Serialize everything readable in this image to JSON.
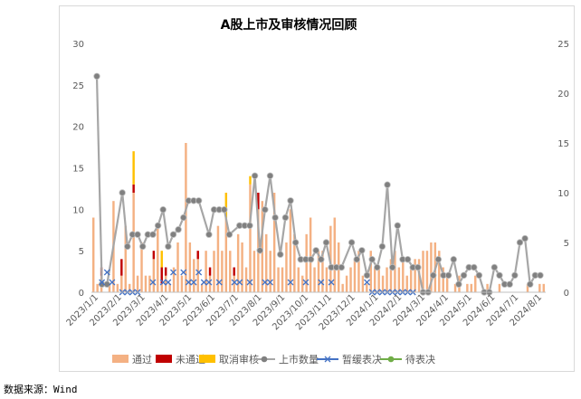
{
  "source_text": "数据来源：Wind",
  "chart_data": {
    "type": "bar",
    "title": "A股上市及审核情况回顾",
    "colors": {
      "pass": "#F4B183",
      "fail": "#C00000",
      "cancel": "#FFC000",
      "listing": "#A6A6A6",
      "listing_marker": "#808080",
      "suspend": "#4472C4",
      "pending": "#70AD47"
    },
    "ylim_left": [
      0,
      30
    ],
    "ylim_right": [
      0,
      25
    ],
    "yticks_left": [
      "0",
      "5",
      "10",
      "15",
      "20",
      "25",
      "30"
    ],
    "yticks_right": [
      "0",
      "5",
      "10",
      "15",
      "20",
      "25"
    ],
    "xticks": [
      "2023/1/1",
      "2023/2/1",
      "2023/3/1",
      "2023/4/1",
      "2023/5/1",
      "2023/6/1",
      "2023/7/1",
      "2023/8/1",
      "2023/9/1",
      "2023/10/1",
      "2023/11/1",
      "2023/12/1",
      "2024/1/1",
      "2024/2/1",
      "2024/3/1",
      "2024/4/1",
      "2024/5/1",
      "2024/6/1",
      "2024/7/1",
      "2024/8/1"
    ],
    "legend": [
      "通过",
      "未通过",
      "取消审核",
      "上市数量",
      "暂缓表决",
      "待表决"
    ],
    "legend_position": "bottom",
    "n_points": 113,
    "pass": [
      9,
      1,
      2,
      0,
      1,
      11,
      1,
      2,
      8,
      1,
      12,
      2,
      6,
      2,
      2,
      4,
      8,
      1,
      2,
      1,
      3,
      6,
      2,
      18,
      6,
      4,
      4,
      1,
      5,
      2,
      5,
      8,
      5,
      9,
      5,
      2,
      7,
      6,
      3,
      13,
      5,
      10,
      11,
      7,
      5,
      12,
      3,
      3,
      6,
      10,
      7,
      3,
      2,
      7,
      9,
      3,
      5,
      5,
      3,
      8,
      9,
      6,
      1,
      2,
      3,
      4,
      5,
      2,
      1,
      5,
      3,
      3,
      2,
      3,
      4,
      5,
      3,
      4,
      2,
      3,
      4,
      4,
      5,
      5,
      6,
      6,
      5,
      3,
      2,
      0,
      1,
      2,
      0,
      1,
      1,
      2,
      0,
      0,
      1,
      0,
      0,
      1,
      0,
      0,
      0,
      0,
      0,
      0,
      1,
      0,
      0,
      1,
      1
    ],
    "fail": [
      0,
      0,
      1,
      0,
      0,
      0,
      0,
      2,
      0,
      0,
      1,
      0,
      0,
      0,
      0,
      1,
      0,
      2,
      1,
      0,
      0,
      0,
      0,
      0,
      0,
      0,
      1,
      0,
      0,
      1,
      0,
      0,
      0,
      0,
      0,
      1,
      0,
      0,
      0,
      0,
      0,
      2,
      0,
      0,
      0,
      0,
      0,
      0,
      0,
      0,
      0,
      0,
      0,
      0,
      0,
      0,
      0,
      0,
      0,
      0,
      0,
      0,
      0,
      0,
      0,
      0,
      0,
      0,
      0,
      0,
      0,
      0,
      0,
      0,
      0,
      0,
      0,
      0,
      0,
      0,
      0,
      0,
      0,
      0,
      0,
      0,
      0,
      0,
      0,
      0,
      0,
      0,
      0,
      0,
      0,
      0,
      0,
      0,
      0,
      0,
      0,
      0,
      0,
      0,
      0,
      0,
      0,
      0,
      0,
      0,
      0,
      0,
      0
    ],
    "cancel": [
      0,
      0,
      0,
      0,
      0,
      0,
      0,
      0,
      0,
      0,
      4,
      0,
      0,
      0,
      0,
      0,
      0,
      2,
      0,
      0,
      0,
      0,
      0,
      0,
      0,
      0,
      0,
      0,
      0,
      0,
      0,
      0,
      0,
      3,
      0,
      0,
      0,
      0,
      0,
      1,
      0,
      0,
      0,
      0,
      0,
      0,
      0,
      0,
      0,
      0,
      0,
      0,
      0,
      0,
      0,
      0,
      0,
      0,
      0,
      0,
      0,
      0,
      0,
      0,
      0,
      0,
      0,
      0,
      0,
      0,
      0,
      0,
      0,
      0,
      0,
      0,
      0,
      0,
      0,
      0,
      0,
      0,
      0,
      0,
      0,
      0,
      0,
      0,
      0,
      0,
      0,
      0,
      0,
      0,
      0,
      0,
      0,
      0,
      0,
      0,
      0,
      0,
      0,
      0,
      0,
      0,
      0,
      0,
      0,
      0,
      0,
      0,
      0
    ],
    "listing": [
      21.7,
      0.8,
      0.8,
      null,
      10.0,
      4.6,
      5.8,
      5.8,
      4.6,
      5.8,
      5.8,
      6.7,
      8.3,
      4.6,
      5.8,
      6.3,
      7.5,
      9.2,
      9.2,
      9.2,
      null,
      5.8,
      8.3,
      8.3,
      8.3,
      5.8,
      null,
      6.7,
      6.7,
      6.7,
      11.7,
      4.2,
      8.3,
      11.7,
      7.5,
      3.8,
      7.5,
      9.2,
      5.0,
      3.3,
      3.3,
      3.3,
      4.2,
      3.3,
      5.0,
      2.5,
      2.5,
      2.5,
      null,
      5.0,
      3.3,
      4.2,
      1.7,
      3.3,
      2.5,
      4.6,
      10.8,
      2.5,
      6.7,
      3.3,
      3.3,
      2.5,
      2.5,
      0,
      0,
      1.7,
      3.3,
      1.7,
      1.7,
      3.3,
      0.8,
      1.7,
      2.5,
      2.5,
      1.7,
      0,
      0,
      2.5,
      1.7,
      0.8,
      0.8,
      1.7,
      5.0,
      5.4,
      0.8,
      1.7,
      1.7
    ],
    "listing_positions": [
      0,
      1,
      2,
      3,
      5,
      6,
      7,
      8,
      9,
      10,
      11,
      12,
      13,
      14,
      15,
      16,
      17,
      18,
      19,
      20,
      21,
      22,
      23,
      24,
      25,
      26,
      27,
      28,
      29,
      30,
      31,
      32,
      33,
      34,
      35,
      36,
      37,
      38,
      39,
      40,
      41,
      42,
      43,
      44,
      45,
      46,
      47,
      48,
      49,
      50,
      51,
      52,
      53,
      54,
      55,
      56,
      57,
      58,
      59,
      60,
      61,
      62,
      63,
      64,
      65,
      66,
      67,
      68,
      69,
      70,
      71,
      72,
      73,
      74,
      75,
      76,
      77,
      78,
      79,
      80,
      81,
      82,
      83,
      84,
      85,
      86,
      87
    ],
    "suspend_positions": [
      1,
      2,
      3,
      5,
      6,
      7,
      8,
      11,
      13,
      14,
      15,
      17,
      18,
      19,
      20,
      21,
      22,
      24,
      27,
      28,
      30,
      33,
      34,
      38,
      41,
      44,
      46,
      53,
      54,
      55,
      56,
      57,
      58,
      59,
      60,
      61,
      62
    ],
    "suspend": [
      1,
      2,
      1,
      0,
      0,
      0,
      0,
      1,
      1,
      1,
      2,
      2,
      1,
      1,
      2,
      1,
      1,
      1,
      1,
      1,
      1,
      1,
      1,
      1,
      1,
      1,
      1,
      1,
      0,
      0,
      0,
      0,
      0,
      0,
      0,
      0,
      0
    ]
  }
}
